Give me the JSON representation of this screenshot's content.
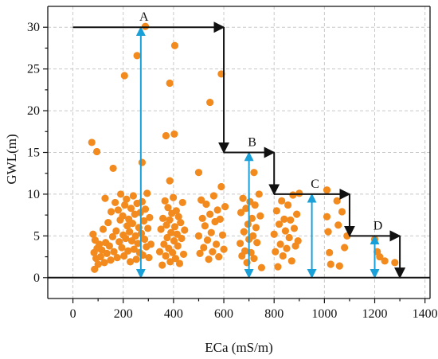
{
  "chart_data": {
    "type": "scatter",
    "xlabel": "ECa (mS/m)",
    "ylabel": "GWL(m)",
    "xlim": [
      -100,
      1420
    ],
    "ylim": [
      -2.5,
      32.5
    ],
    "xticks": [
      0,
      200,
      400,
      600,
      800,
      1000,
      1200,
      1400
    ],
    "yticks": [
      0,
      5,
      10,
      15,
      20,
      25,
      30
    ],
    "grid": true,
    "colors": {
      "points": "#f28a1e",
      "arrows": "#1aa0d8",
      "steps": "#111111"
    },
    "points": [
      [
        75,
        16.2
      ],
      [
        95,
        15.1
      ],
      [
        160,
        13.1
      ],
      [
        205,
        24.2
      ],
      [
        255,
        26.6
      ],
      [
        275,
        13.8
      ],
      [
        288,
        30.1
      ],
      [
        385,
        23.3
      ],
      [
        405,
        27.8
      ],
      [
        370,
        17.0
      ],
      [
        403,
        17.2
      ],
      [
        385,
        11.6
      ],
      [
        545,
        21.0
      ],
      [
        590,
        24.4
      ],
      [
        500,
        12.6
      ],
      [
        720,
        12.6
      ],
      [
        1010,
        10.5
      ],
      [
        80,
        5.2
      ],
      [
        84,
        3.0
      ],
      [
        86,
        1.0
      ],
      [
        88,
        4.5
      ],
      [
        92,
        2.3
      ],
      [
        96,
        3.5
      ],
      [
        100,
        1.6
      ],
      [
        105,
        4.0
      ],
      [
        110,
        2.5
      ],
      [
        115,
        3.3
      ],
      [
        120,
        5.8
      ],
      [
        125,
        1.8
      ],
      [
        128,
        9.5
      ],
      [
        130,
        4.2
      ],
      [
        135,
        2.9
      ],
      [
        140,
        6.6
      ],
      [
        145,
        3.8
      ],
      [
        150,
        2.1
      ],
      [
        152,
        7.9
      ],
      [
        158,
        4.9
      ],
      [
        163,
        3.1
      ],
      [
        168,
        9.0
      ],
      [
        172,
        5.6
      ],
      [
        176,
        2.4
      ],
      [
        180,
        8.1
      ],
      [
        184,
        4.3
      ],
      [
        188,
        6.9
      ],
      [
        190,
        10.0
      ],
      [
        194,
        3.6
      ],
      [
        198,
        7.4
      ],
      [
        200,
        5.1
      ],
      [
        203,
        2.6
      ],
      [
        206,
        8.7
      ],
      [
        210,
        4.7
      ],
      [
        213,
        9.4
      ],
      [
        216,
        6.2
      ],
      [
        219,
        3.2
      ],
      [
        222,
        7.0
      ],
      [
        225,
        5.5
      ],
      [
        228,
        1.9
      ],
      [
        231,
        8.3
      ],
      [
        234,
        4.4
      ],
      [
        237,
        6.5
      ],
      [
        240,
        9.8
      ],
      [
        243,
        3.4
      ],
      [
        246,
        7.6
      ],
      [
        249,
        5.0
      ],
      [
        252,
        2.2
      ],
      [
        255,
        8.9
      ],
      [
        258,
        4.1
      ],
      [
        262,
        6.0
      ],
      [
        265,
        3.0
      ],
      [
        268,
        7.8
      ],
      [
        272,
        5.3
      ],
      [
        275,
        9.1
      ],
      [
        278,
        2.7
      ],
      [
        282,
        6.8
      ],
      [
        285,
        4.6
      ],
      [
        288,
        8.2
      ],
      [
        292,
        3.7
      ],
      [
        295,
        10.1
      ],
      [
        298,
        5.9
      ],
      [
        302,
        2.4
      ],
      [
        305,
        7.2
      ],
      [
        310,
        4.0
      ],
      [
        345,
        3.1
      ],
      [
        350,
        5.8
      ],
      [
        355,
        1.5
      ],
      [
        358,
        7.1
      ],
      [
        362,
        4.0
      ],
      [
        366,
        9.2
      ],
      [
        369,
        2.6
      ],
      [
        372,
        6.3
      ],
      [
        375,
        4.8
      ],
      [
        378,
        8.4
      ],
      [
        381,
        3.5
      ],
      [
        384,
        6.9
      ],
      [
        387,
        1.9
      ],
      [
        390,
        5.4
      ],
      [
        393,
        7.7
      ],
      [
        396,
        3.0
      ],
      [
        399,
        9.6
      ],
      [
        402,
        4.4
      ],
      [
        405,
        6.1
      ],
      [
        408,
        2.3
      ],
      [
        411,
        8.0
      ],
      [
        414,
        5.2
      ],
      [
        417,
        3.8
      ],
      [
        420,
        7.3
      ],
      [
        424,
        1.7
      ],
      [
        428,
        6.6
      ],
      [
        432,
        4.7
      ],
      [
        436,
        9.0
      ],
      [
        440,
        2.8
      ],
      [
        444,
        5.7
      ],
      [
        500,
        5.0
      ],
      [
        505,
        2.9
      ],
      [
        510,
        9.3
      ],
      [
        515,
        7.1
      ],
      [
        520,
        3.6
      ],
      [
        525,
        6.2
      ],
      [
        530,
        8.8
      ],
      [
        535,
        4.5
      ],
      [
        540,
        2.2
      ],
      [
        545,
        7.6
      ],
      [
        550,
        5.4
      ],
      [
        555,
        3.1
      ],
      [
        560,
        9.8
      ],
      [
        565,
        6.7
      ],
      [
        570,
        4.0
      ],
      [
        575,
        8.1
      ],
      [
        580,
        2.5
      ],
      [
        585,
        7.0
      ],
      [
        590,
        10.9
      ],
      [
        595,
        5.1
      ],
      [
        600,
        3.4
      ],
      [
        605,
        8.5
      ],
      [
        665,
        4.1
      ],
      [
        668,
        7.8
      ],
      [
        672,
        2.6
      ],
      [
        676,
        9.5
      ],
      [
        680,
        5.5
      ],
      [
        684,
        3.2
      ],
      [
        688,
        8.3
      ],
      [
        692,
        1.8
      ],
      [
        696,
        6.4
      ],
      [
        700,
        4.6
      ],
      [
        704,
        9.1
      ],
      [
        708,
        3.0
      ],
      [
        712,
        7.1
      ],
      [
        716,
        5.0
      ],
      [
        720,
        2.3
      ],
      [
        724,
        8.7
      ],
      [
        728,
        6.0
      ],
      [
        732,
        4.2
      ],
      [
        740,
        10.0
      ],
      [
        745,
        7.4
      ],
      [
        750,
        1.2
      ],
      [
        800,
        5.2
      ],
      [
        805,
        3.1
      ],
      [
        810,
        8.0
      ],
      [
        815,
        1.3
      ],
      [
        820,
        6.4
      ],
      [
        825,
        4.0
      ],
      [
        830,
        9.2
      ],
      [
        835,
        2.6
      ],
      [
        840,
        7.0
      ],
      [
        845,
        5.6
      ],
      [
        850,
        3.5
      ],
      [
        855,
        8.7
      ],
      [
        860,
        4.8
      ],
      [
        865,
        6.9
      ],
      [
        870,
        2.0
      ],
      [
        875,
        9.9
      ],
      [
        880,
        5.9
      ],
      [
        885,
        3.8
      ],
      [
        890,
        7.6
      ],
      [
        895,
        4.4
      ],
      [
        900,
        10.1
      ],
      [
        1010,
        7.3
      ],
      [
        1015,
        5.5
      ],
      [
        1020,
        3.0
      ],
      [
        1025,
        1.6
      ],
      [
        1050,
        9.2
      ],
      [
        1055,
        6.3
      ],
      [
        1060,
        1.4
      ],
      [
        1070,
        7.9
      ],
      [
        1080,
        3.6
      ],
      [
        1090,
        5.0
      ],
      [
        1200,
        4.6
      ],
      [
        1210,
        3.1
      ],
      [
        1220,
        2.5
      ],
      [
        1240,
        2.0
      ],
      [
        1280,
        1.8
      ]
    ],
    "step_path": [
      [
        0,
        30
      ],
      [
        600,
        30
      ],
      [
        600,
        15
      ],
      [
        800,
        15
      ],
      [
        800,
        10
      ],
      [
        1100,
        10
      ],
      [
        1100,
        5
      ],
      [
        1300,
        5
      ],
      [
        1300,
        0
      ]
    ],
    "vertical_ranges": [
      {
        "label": "A",
        "x": 270,
        "y0": 0,
        "y1": 30
      },
      {
        "label": "B",
        "x": 700,
        "y0": 0,
        "y1": 15
      },
      {
        "label": "C",
        "x": 950,
        "y0": 0,
        "y1": 10
      },
      {
        "label": "D",
        "x": 1200,
        "y0": 0,
        "y1": 5
      }
    ]
  }
}
